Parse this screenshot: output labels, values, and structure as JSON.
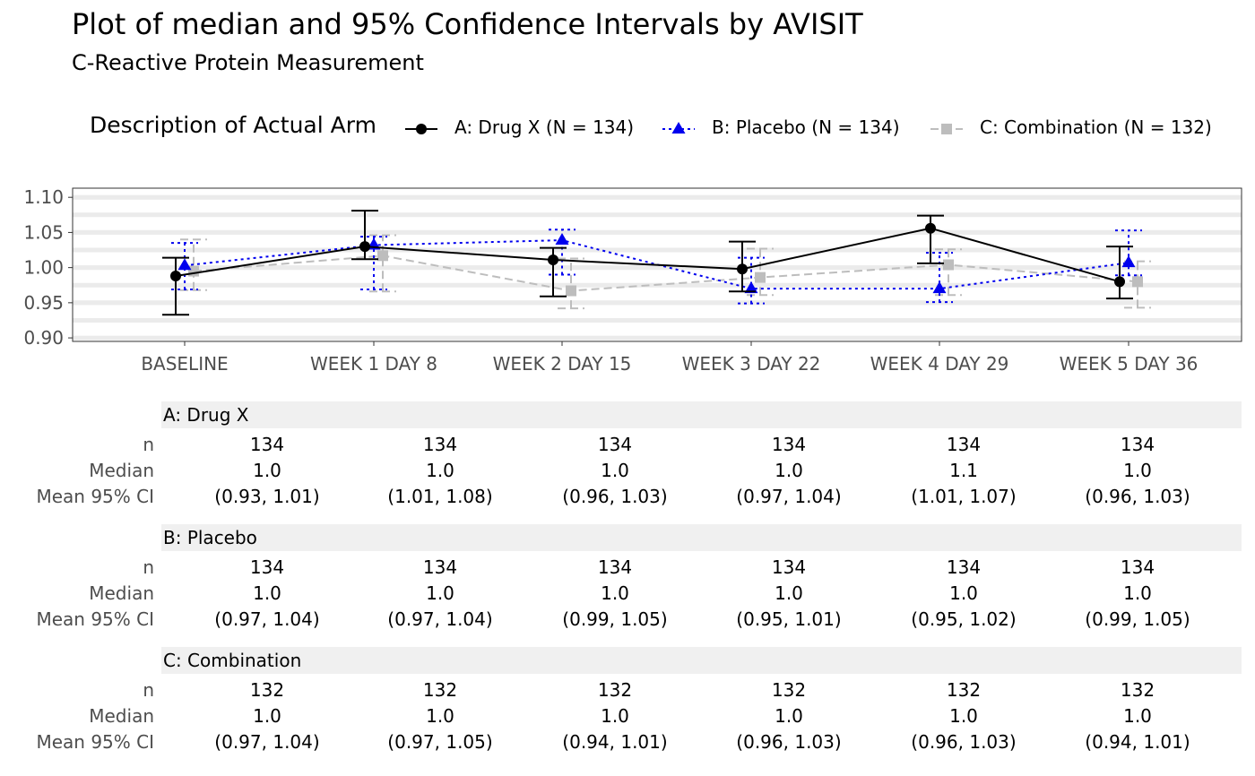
{
  "title": "Plot of median and 95% Confidence Intervals by AVISIT",
  "subtitle": "C-Reactive Protein Measurement",
  "legend": {
    "title": "Description of Actual Arm",
    "entries": [
      {
        "label": "A: Drug X (N = 134)",
        "color": "#000000",
        "marker": "circle",
        "linetype": "solid"
      },
      {
        "label": "B: Placebo (N = 134)",
        "color": "#0000ee",
        "marker": "triangle",
        "linetype": "dotted"
      },
      {
        "label": "C: Combination (N = 132)",
        "color": "#bdbdbd",
        "marker": "square",
        "linetype": "dashed"
      }
    ]
  },
  "chart_data": {
    "type": "line",
    "categories": [
      "BASELINE",
      "WEEK 1 DAY 8",
      "WEEK 2 DAY 15",
      "WEEK 3 DAY 22",
      "WEEK 4 DAY 29",
      "WEEK 5 DAY 36"
    ],
    "ylim": [
      0.895,
      1.113
    ],
    "yticks": [
      "0.90",
      "0.95",
      "1.00",
      "1.05",
      "1.10"
    ],
    "ytick_values": [
      0.9,
      0.95,
      1.0,
      1.05,
      1.1
    ],
    "grid": true,
    "series": [
      {
        "name": "A: Drug X (N = 134)",
        "color": "#000000",
        "marker": "circle",
        "dash": "",
        "median": [
          0.988,
          1.03,
          1.011,
          0.998,
          1.056,
          0.98
        ],
        "lower": [
          0.933,
          1.012,
          0.959,
          0.966,
          1.006,
          0.956
        ],
        "upper": [
          1.014,
          1.081,
          1.028,
          1.037,
          1.074,
          1.03
        ]
      },
      {
        "name": "B: Placebo (N = 134)",
        "color": "#0000ee",
        "marker": "triangle",
        "dash": "3,4",
        "median": [
          1.003,
          1.032,
          1.039,
          0.97,
          0.97,
          1.007
        ],
        "lower": [
          0.969,
          0.969,
          0.99,
          0.949,
          0.951,
          0.989
        ],
        "upper": [
          1.035,
          1.044,
          1.054,
          1.014,
          1.021,
          1.053
        ]
      },
      {
        "name": "C: Combination (N = 132)",
        "color": "#bdbdbd",
        "marker": "square",
        "dash": "9,5",
        "median": [
          0.995,
          1.017,
          0.967,
          0.986,
          1.004,
          0.98
        ],
        "lower": [
          0.968,
          0.966,
          0.942,
          0.961,
          0.961,
          0.943
        ],
        "upper": [
          1.04,
          1.046,
          1.013,
          1.027,
          1.026,
          1.009
        ]
      }
    ]
  },
  "table": {
    "row_labels": [
      "n",
      "Median",
      "Mean 95% CI"
    ],
    "groups": [
      {
        "name": "A: Drug X",
        "n": [
          "134",
          "134",
          "134",
          "134",
          "134",
          "134"
        ],
        "median": [
          "1.0",
          "1.0",
          "1.0",
          "1.0",
          "1.1",
          "1.0"
        ],
        "ci": [
          "(0.93, 1.01)",
          "(1.01, 1.08)",
          "(0.96, 1.03)",
          "(0.97, 1.04)",
          "(1.01, 1.07)",
          "(0.96, 1.03)"
        ]
      },
      {
        "name": "B: Placebo",
        "n": [
          "134",
          "134",
          "134",
          "134",
          "134",
          "134"
        ],
        "median": [
          "1.0",
          "1.0",
          "1.0",
          "1.0",
          "1.0",
          "1.0"
        ],
        "ci": [
          "(0.97, 1.04)",
          "(0.97, 1.04)",
          "(0.99, 1.05)",
          "(0.95, 1.01)",
          "(0.95, 1.02)",
          "(0.99, 1.05)"
        ]
      },
      {
        "name": "C: Combination",
        "n": [
          "132",
          "132",
          "132",
          "132",
          "132",
          "132"
        ],
        "median": [
          "1.0",
          "1.0",
          "1.0",
          "1.0",
          "1.0",
          "1.0"
        ],
        "ci": [
          "(0.97, 1.04)",
          "(0.97, 1.05)",
          "(0.94, 1.01)",
          "(0.96, 1.03)",
          "(0.96, 1.03)",
          "(0.94, 1.01)"
        ]
      }
    ]
  }
}
